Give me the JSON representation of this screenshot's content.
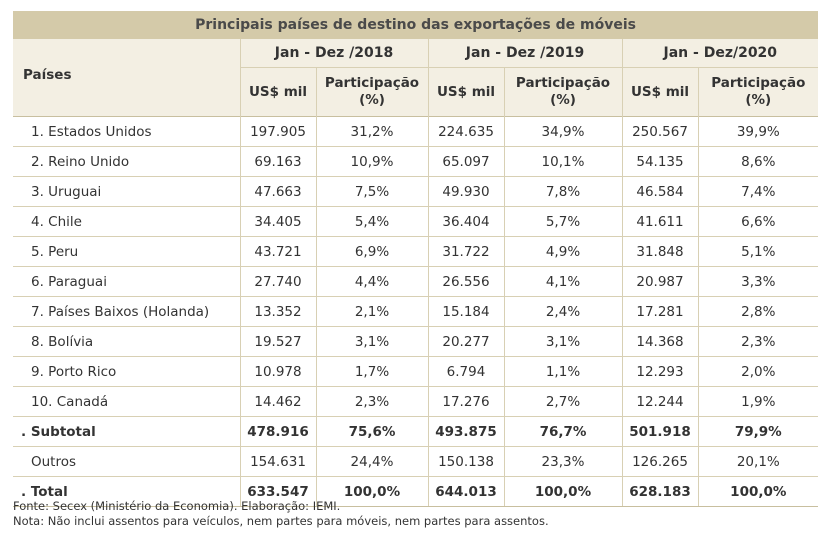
{
  "title": "Principais países de destino das exportações de móveis",
  "col_paises": "Países",
  "periods": [
    "Jan - Dez /2018",
    "Jan - Dez /2019",
    "Jan - Dez/2020"
  ],
  "sub_usd": "US$ mil",
  "sub_part_line1": "Participação",
  "sub_part_line2": "(%)",
  "rows": [
    {
      "name": "1. Estados Unidos",
      "v": [
        "197.905",
        "31,2%",
        "224.635",
        "34,9%",
        "250.567",
        "39,9%"
      ]
    },
    {
      "name": "2. Reino Unido",
      "v": [
        "69.163",
        "10,9%",
        "65.097",
        "10,1%",
        "54.135",
        "8,6%"
      ]
    },
    {
      "name": "3. Uruguai",
      "v": [
        "47.663",
        "7,5%",
        "49.930",
        "7,8%",
        "46.584",
        "7,4%"
      ]
    },
    {
      "name": "4. Chile",
      "v": [
        "34.405",
        "5,4%",
        "36.404",
        "5,7%",
        "41.611",
        "6,6%"
      ]
    },
    {
      "name": "5. Peru",
      "v": [
        "43.721",
        "6,9%",
        "31.722",
        "4,9%",
        "31.848",
        "5,1%"
      ]
    },
    {
      "name": "6. Paraguai",
      "v": [
        "27.740",
        "4,4%",
        "26.556",
        "4,1%",
        "20.987",
        "3,3%"
      ]
    },
    {
      "name": "7. Países Baixos (Holanda)",
      "v": [
        "13.352",
        "2,1%",
        "15.184",
        "2,4%",
        "17.281",
        "2,8%"
      ]
    },
    {
      "name": "8. Bolívia",
      "v": [
        "19.527",
        "3,1%",
        "20.277",
        "3,1%",
        "14.368",
        "2,3%"
      ]
    },
    {
      "name": "9. Porto Rico",
      "v": [
        "10.978",
        "1,7%",
        "6.794",
        "1,1%",
        "12.293",
        "2,0%"
      ]
    },
    {
      "name": "10. Canadá",
      "v": [
        "14.462",
        "2,3%",
        "17.276",
        "2,7%",
        "12.244",
        "1,9%"
      ]
    }
  ],
  "subtotal": {
    "name": ". Subtotal",
    "v": [
      "478.916",
      "75,6%",
      "493.875",
      "76,7%",
      "501.918",
      "79,9%"
    ]
  },
  "outros": {
    "name": "Outros",
    "v": [
      "154.631",
      "24,4%",
      "150.138",
      "23,3%",
      "126.265",
      "20,1%"
    ]
  },
  "total": {
    "name": ". Total",
    "v": [
      "633.547",
      "100,0%",
      "644.013",
      "100,0%",
      "628.183",
      "100,0%"
    ]
  },
  "fonte": "Fonte: Secex (Ministério da Economia). Elaboração: IEMI.",
  "nota": "Nota: Não inclui assentos para veículos, nem partes para móveis, nem partes para assentos."
}
